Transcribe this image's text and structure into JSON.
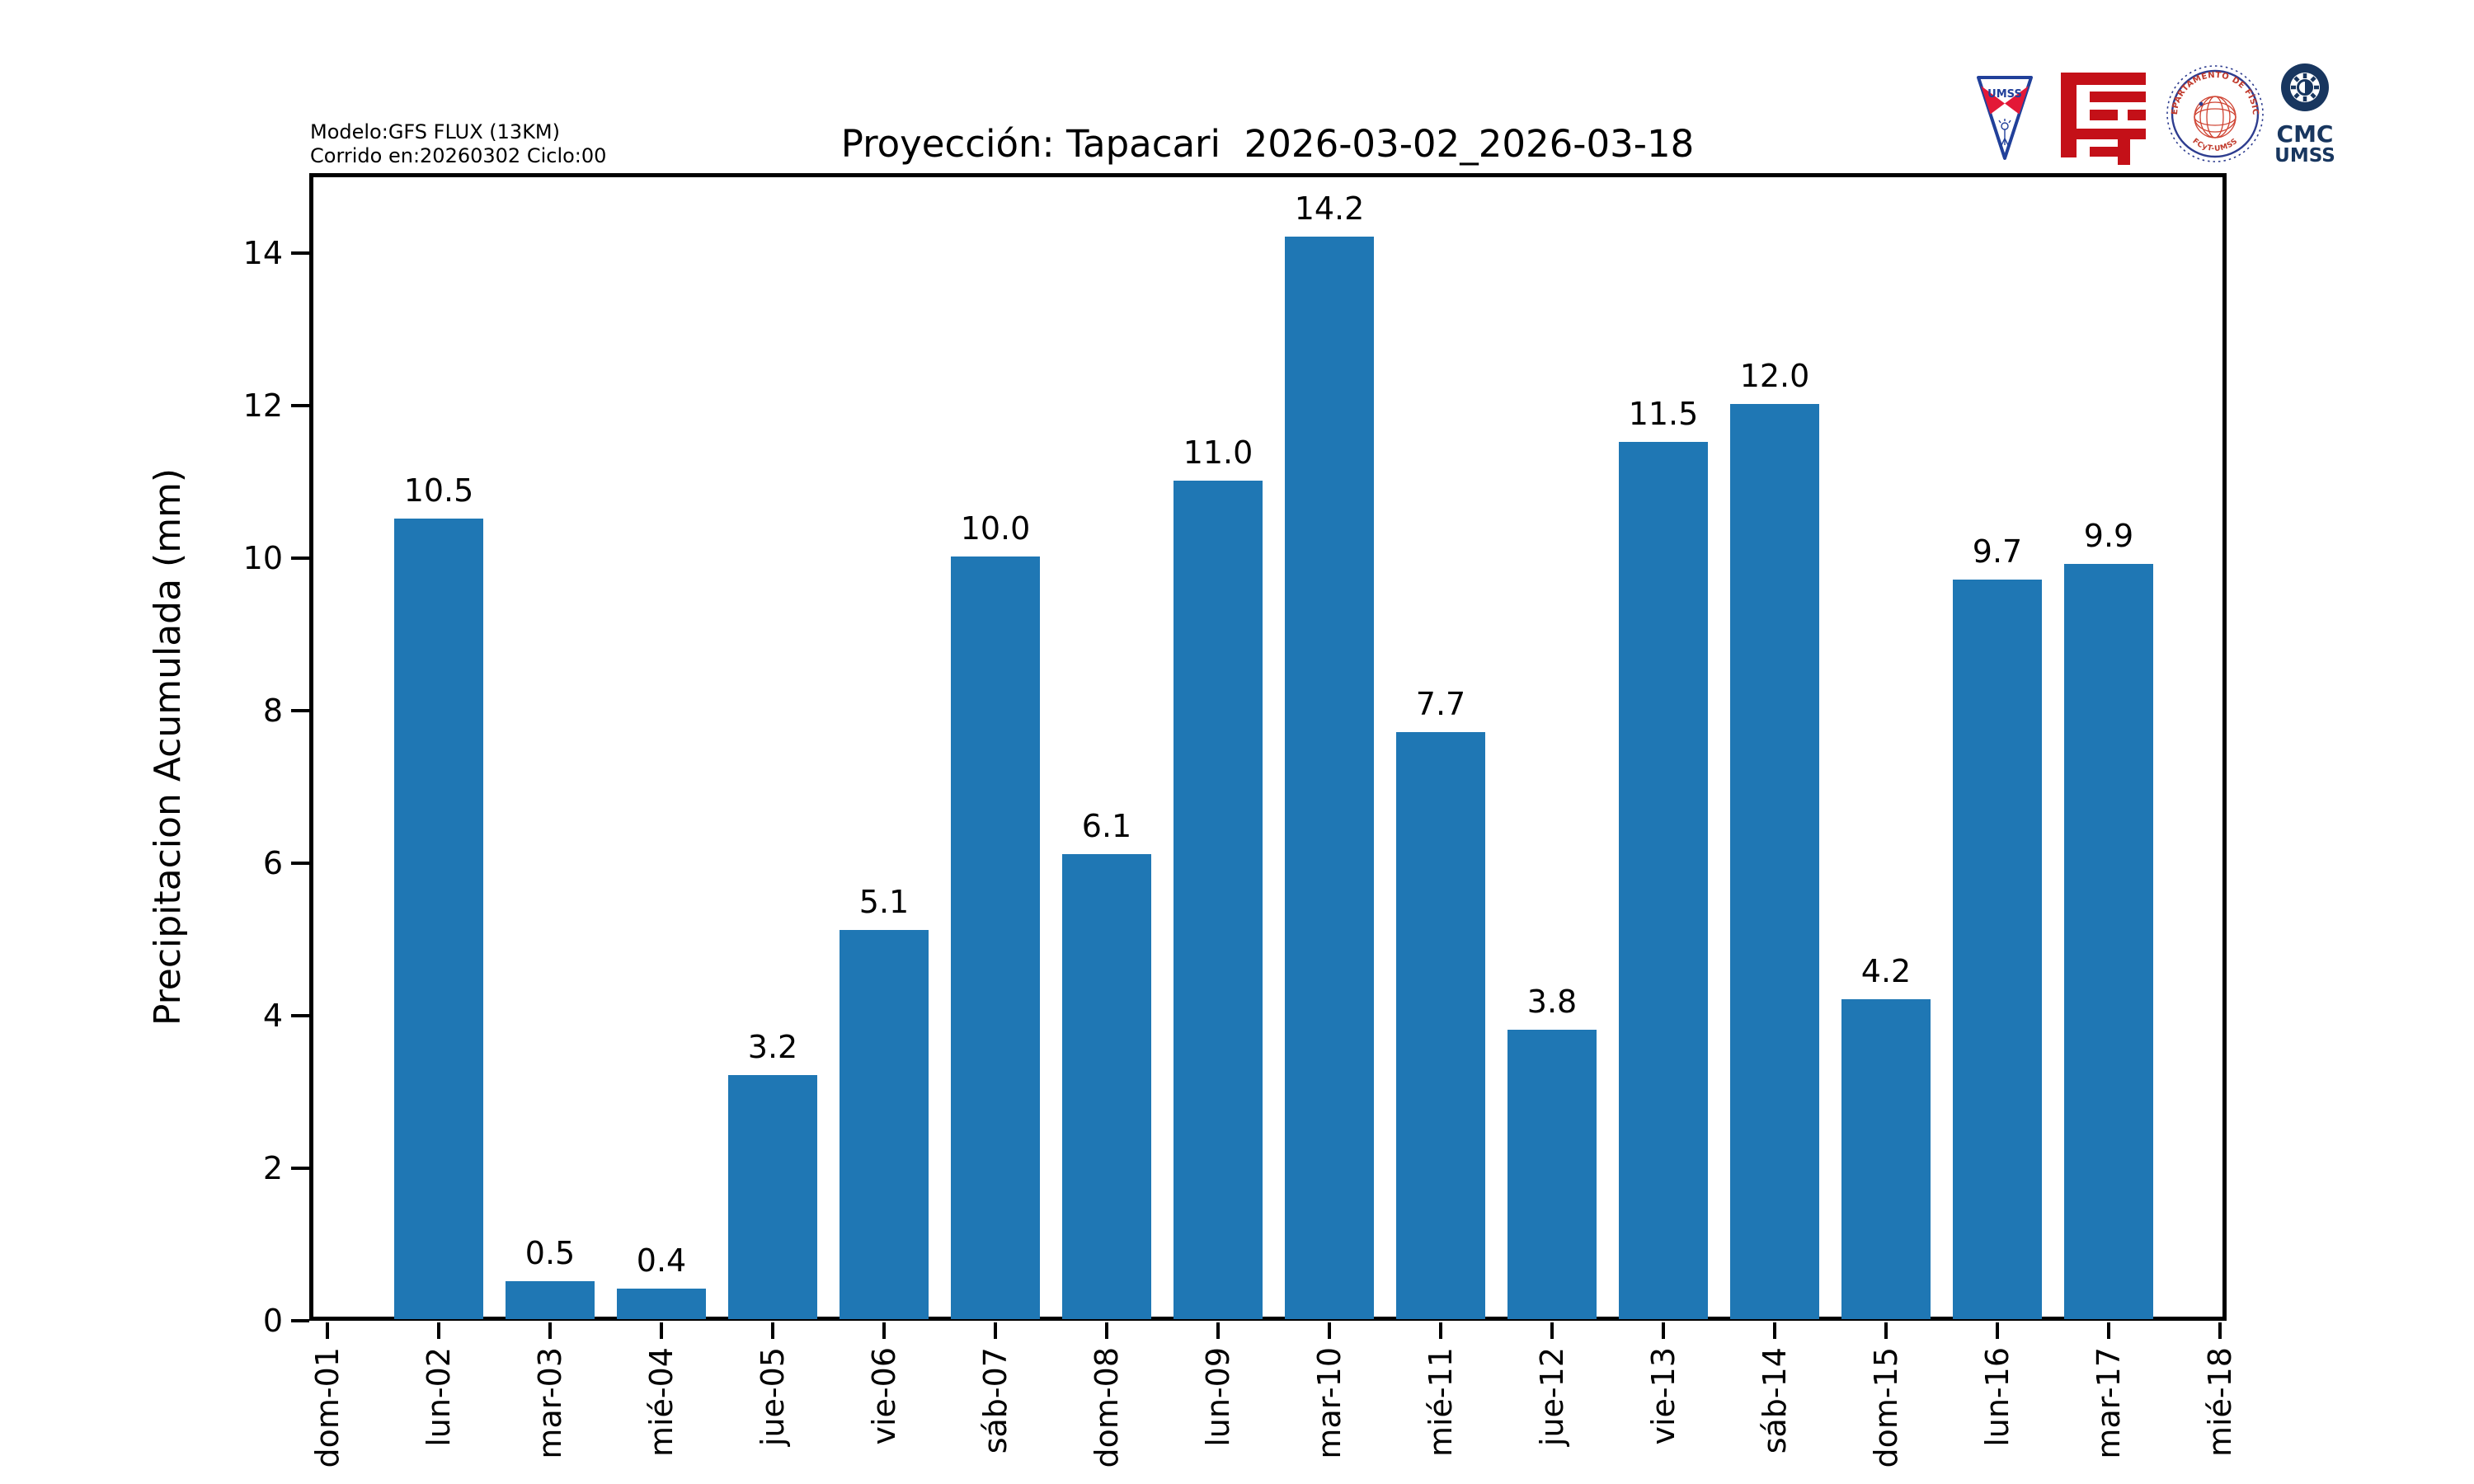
{
  "header": {
    "meta_line1": "Modelo:GFS FLUX (13KM)",
    "meta_line2": "Corrido en:20260302 Ciclo:00",
    "title": "Proyección: Tapacari  2026-03-02_2026-03-18"
  },
  "logos": {
    "umss_shield_text": "UMSS",
    "fisica_seal_top": "DEPARTAMENTO DE FÍSICA",
    "fisica_seal_bottom": "FCyT-UMSS",
    "cmc_line1": "CMC",
    "cmc_line2": "UMSS"
  },
  "chart_data": {
    "type": "bar",
    "title": "Proyección: Tapacari  2026-03-02_2026-03-18",
    "ylabel": "Precipitacion Acumulada (mm)",
    "xlabel": "",
    "categories": [
      "dom-01",
      "lun-02",
      "mar-03",
      "mié-04",
      "jue-05",
      "vie-06",
      "sáb-07",
      "dom-08",
      "lun-09",
      "mar-10",
      "mié-11",
      "jue-12",
      "vie-13",
      "sáb-14",
      "dom-15",
      "lun-16",
      "mar-17",
      "mié-18"
    ],
    "values": [
      null,
      10.5,
      0.5,
      0.4,
      3.2,
      5.1,
      10.0,
      6.1,
      11.0,
      14.2,
      7.7,
      3.8,
      11.5,
      12.0,
      4.2,
      9.7,
      9.9,
      null
    ],
    "bar_color": "#1f77b4",
    "yticks": [
      0,
      2,
      4,
      6,
      8,
      10,
      12,
      14
    ],
    "ylim": [
      0,
      15.05
    ],
    "grid": false,
    "legend": null,
    "value_label_decimals": 1
  }
}
